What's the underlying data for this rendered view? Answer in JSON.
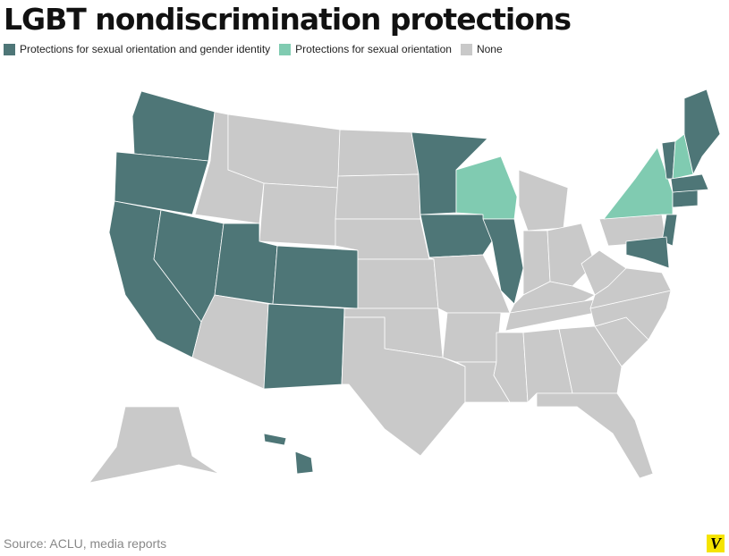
{
  "title": "LGBT nondiscrimination protections",
  "legend": [
    {
      "label": "Protections for sexual orientation and gender identity",
      "color": "#4e7677"
    },
    {
      "label": "Protections for sexual orientation",
      "color": "#80cbb1"
    },
    {
      "label": "None",
      "color": "#c9c9c9"
    }
  ],
  "regions": [
    0,
    0,
    0,
    0,
    2,
    2,
    2,
    0,
    0,
    2,
    0,
    2,
    2,
    2,
    2,
    2,
    2,
    0,
    0,
    2,
    2,
    2,
    1,
    0,
    2,
    2,
    2,
    2,
    2,
    2,
    2,
    2,
    2,
    2,
    2,
    2,
    2,
    2,
    1,
    0,
    1,
    0,
    0,
    0,
    0,
    0,
    2,
    0,
    0
  ],
  "source": "Source: ACLU, media reports",
  "logo": "V"
}
